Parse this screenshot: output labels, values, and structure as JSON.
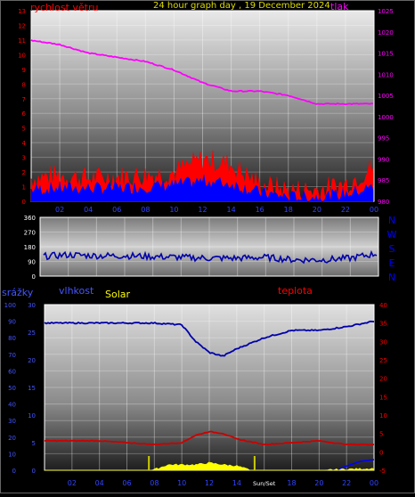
{
  "title": "24 hour graph day , 19 December 2024",
  "colors": {
    "wind": "#ff0000",
    "gust": "#0000ff",
    "pressure": "#ff00ff",
    "direction": "#0000aa",
    "humidity": "#0000aa",
    "temperature": "#cc0000",
    "solar": "#ffff00",
    "rain": "#0000ff",
    "frame": "#ffffff",
    "axis_label": "#ff0000",
    "dir_label": "#0000ff"
  },
  "hour_ticks": [
    "02",
    "04",
    "06",
    "08",
    "10",
    "12",
    "14",
    "16",
    "18",
    "20",
    "22",
    "00"
  ],
  "hour_ticks_bottom": [
    "02",
    "04",
    "06",
    "08",
    "10",
    "12",
    "14",
    "Sun/Set",
    "18",
    "20",
    "22",
    "00"
  ],
  "chart_data": [
    {
      "type": "line",
      "labels": {
        "left": "rychlost větru",
        "right": "tlak"
      },
      "left_ticks": [
        "0",
        "1",
        "2",
        "3",
        "4",
        "5",
        "6",
        "7",
        "8",
        "9",
        "10",
        "11",
        "12",
        "13"
      ],
      "right_ticks": [
        "980",
        "985",
        "990",
        "995",
        "1000",
        "1005",
        "1010",
        "1015",
        "1020",
        "1025"
      ],
      "left_ylim": [
        0,
        13
      ],
      "right_ylim": [
        980,
        1025
      ],
      "series": [
        {
          "axis": "right",
          "x": [
            0,
            2,
            4,
            6,
            8,
            10,
            12,
            14,
            16,
            18,
            20,
            22,
            24
          ],
          "values": [
            1018,
            1017,
            1015,
            1014,
            1013,
            1011,
            1008,
            1006,
            1006,
            1005,
            1003,
            1003,
            1003
          ]
        },
        {
          "axis": "left",
          "x": [
            0,
            2,
            4,
            6,
            8,
            10,
            12,
            14,
            16,
            18,
            20,
            22,
            24
          ],
          "values": [
            1.4,
            1.6,
            1.4,
            1.5,
            1.6,
            1.8,
            2.7,
            2.3,
            1.0,
            0.6,
            0.6,
            1.0,
            2.2
          ]
        },
        {
          "axis": "left",
          "x": [
            0,
            2,
            4,
            6,
            8,
            10,
            12,
            14,
            16,
            18,
            20,
            22,
            24
          ],
          "values": [
            0.7,
            0.8,
            0.8,
            0.8,
            0.9,
            1.0,
            1.3,
            1.1,
            0.5,
            0.2,
            0.2,
            0.4,
            0.9
          ]
        }
      ]
    },
    {
      "type": "line",
      "left_ticks": [
        "0",
        "90",
        "180",
        "270",
        "360"
      ],
      "right_labels": [
        "N",
        "W",
        "S",
        "E",
        "N"
      ],
      "ylim": [
        0,
        360
      ],
      "series": [
        {
          "x": [
            0,
            2,
            4,
            6,
            8,
            10,
            12,
            14,
            16,
            18,
            20,
            22,
            24
          ],
          "values": [
            120,
            130,
            125,
            125,
            120,
            115,
            110,
            110,
            115,
            100,
            100,
            110,
            140
          ]
        }
      ]
    },
    {
      "type": "line",
      "labels": {
        "rain": "srážky",
        "humidity": "vlhkost",
        "solar": "Solar",
        "temperature": "teplota"
      },
      "rain_ticks": [
        "0",
        "10",
        "20",
        "30",
        "40",
        "50",
        "60",
        "70",
        "80",
        "90",
        "100"
      ],
      "humidity_ticks": [
        "0",
        "5",
        "10",
        "15",
        "20",
        "25",
        "30"
      ],
      "temp_ticks": [
        "-5",
        "0",
        "5",
        "10",
        "15",
        "20",
        "25",
        "30",
        "35",
        "40"
      ],
      "temp_ylim": [
        -5,
        40
      ],
      "series": [
        {
          "x": [
            0,
            2,
            4,
            6,
            8,
            10,
            11,
            12,
            13,
            14,
            16,
            18,
            20,
            22,
            24
          ],
          "values": [
            35,
            35,
            35,
            35,
            35,
            34.5,
            30,
            27,
            26,
            28,
            31,
            33,
            33,
            34,
            35.5
          ]
        },
        {
          "x": [
            0,
            2,
            4,
            6,
            8,
            10,
            11,
            12,
            13,
            14,
            16,
            18,
            20,
            22,
            24
          ],
          "values": [
            3,
            3,
            3,
            2.5,
            2,
            2.5,
            4.5,
            5.5,
            5,
            3.5,
            2,
            2.5,
            3,
            2,
            2
          ]
        },
        {
          "x": [
            0,
            7.5,
            8,
            9,
            10,
            11,
            12,
            13,
            14,
            15,
            16,
            18,
            20,
            22,
            24
          ],
          "values": [
            -5,
            -5,
            -4.8,
            -3.5,
            -3.5,
            -3.5,
            -3,
            -3.5,
            -3.8,
            -5,
            -5,
            -5,
            -5,
            -4.7,
            -4.5
          ]
        }
      ]
    }
  ]
}
